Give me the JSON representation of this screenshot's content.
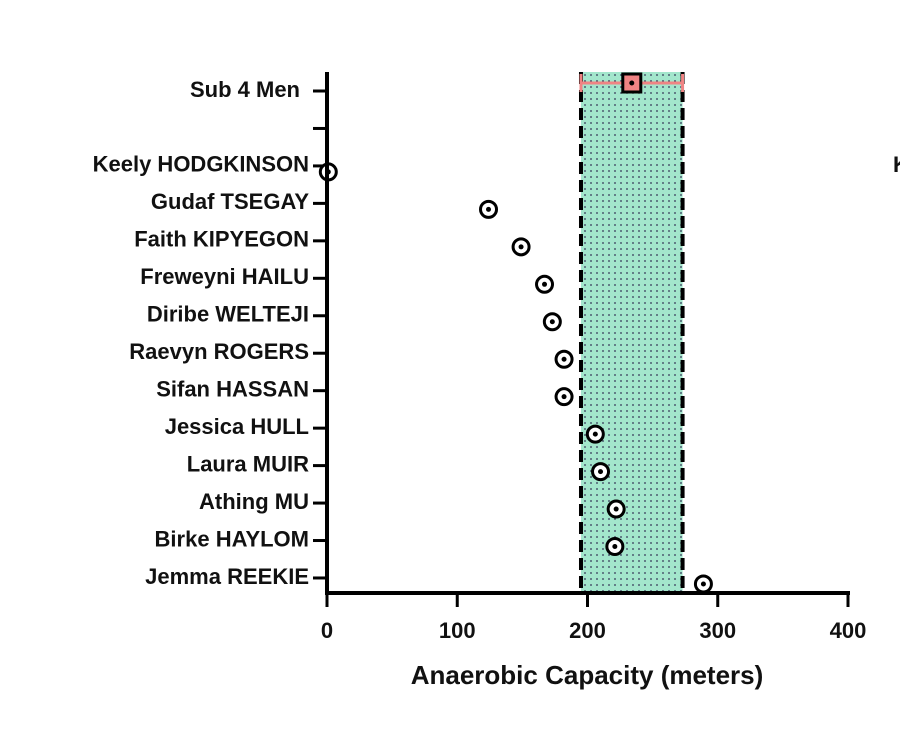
{
  "chart_data": {
    "type": "dot",
    "x_label": "Anaerobic Capacity (meters)",
    "xlim": [
      0,
      400
    ],
    "xticks": [
      0,
      100,
      200,
      300,
      400
    ],
    "reference": {
      "category": "Sub 4 Men",
      "value": 234,
      "error": 39,
      "color": "#f08484",
      "band_color": "#a3e6cc"
    },
    "categories": [
      "Keely HODGKINSON",
      "Gudaf TSEGAY",
      "Faith KIPYEGON",
      "Freweyni HAILU",
      "Diribe WELTEJI",
      "Raevyn ROGERS",
      "Sifan HASSAN",
      "Jessica HULL",
      "Laura MUIR",
      "Athing MU",
      "Birke HAYLOM",
      "Jemma REEKIE"
    ],
    "values": [
      1,
      124,
      149,
      167,
      173,
      182,
      182,
      206,
      210,
      222,
      221,
      289
    ],
    "edge_text": "K"
  }
}
